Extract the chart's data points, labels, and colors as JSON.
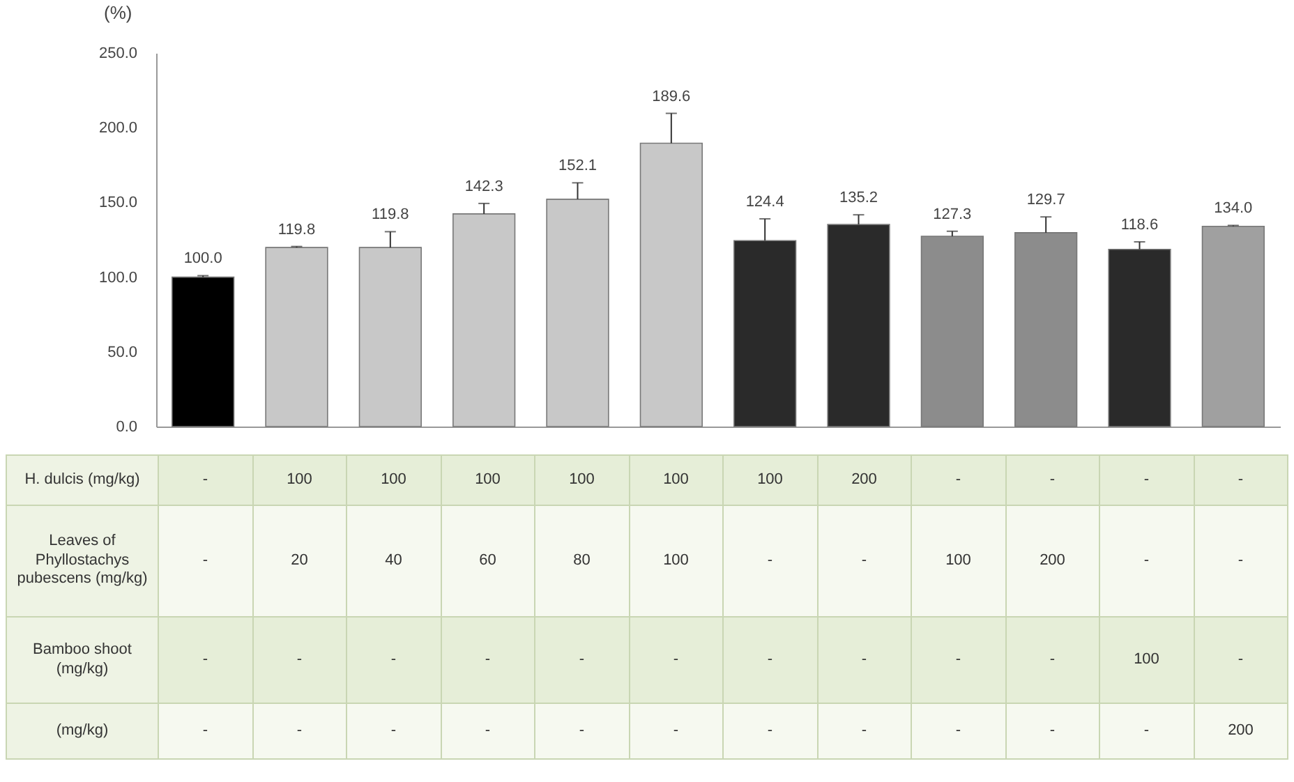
{
  "chart_data": {
    "type": "bar",
    "ylabel": "(%)",
    "categories": [
      null,
      null,
      null,
      null,
      null,
      null,
      null,
      null,
      null,
      null,
      null,
      null
    ],
    "values": [
      100.0,
      119.8,
      119.8,
      142.3,
      152.1,
      189.6,
      124.4,
      135.2,
      127.3,
      129.7,
      118.6,
      134.0
    ],
    "value_labels": [
      "100.0",
      "119.8",
      "119.8",
      "142.3",
      "152.1",
      "189.6",
      "124.4",
      "135.2",
      "127.3",
      "129.7",
      "118.6",
      "134.0"
    ],
    "errors": [
      [
        100,
        101
      ],
      [
        119.8,
        120.5
      ],
      [
        119.8,
        130.4
      ],
      [
        142.3,
        149.3
      ],
      [
        152.1,
        163.1
      ],
      [
        189.6,
        209.6
      ],
      [
        124.4,
        139
      ],
      [
        135.2,
        141.7
      ],
      [
        127.3,
        130.7
      ],
      [
        129.7,
        140.3
      ],
      [
        118.6,
        123.6
      ],
      [
        134,
        134.6
      ]
    ],
    "colors": [
      "#000000",
      "#c8c8c8",
      "#c8c8c8",
      "#c8c8c8",
      "#c8c8c8",
      "#c8c8c8",
      "#2a2a2a",
      "#2a2a2a",
      "#8c8c8c",
      "#8c8c8c",
      "#2a2a2a",
      "#a0a0a0"
    ],
    "ylim": [
      0,
      250
    ],
    "yticks": [
      {
        "value": 0,
        "label": "0.0"
      },
      {
        "value": 50,
        "label": "50.0"
      },
      {
        "value": 100,
        "label": "100.0"
      },
      {
        "value": 150,
        "label": "150.0"
      },
      {
        "value": 200,
        "label": "200.0"
      },
      {
        "value": 250,
        "label": "250.0"
      }
    ],
    "grid": false,
    "annotations": [
      "H. dulcis (mg/kg)",
      "-",
      "100",
      "100",
      "100",
      "100",
      "100",
      "100",
      "200",
      "-",
      "-",
      "-",
      "-",
      "Leaves of Phyllostachys pubescens (mg/kg)",
      "-",
      "20",
      "40",
      "60",
      "80",
      "100",
      "-",
      "-",
      "100",
      "200",
      "-",
      "-",
      "Bamboo shoot (mg/kg)",
      "-",
      "-",
      "-",
      "-",
      "-",
      "-",
      "-",
      "-",
      "-",
      "-",
      "100",
      "-",
      "(mg/kg)",
      "-",
      "-",
      "-",
      "-",
      "-",
      "-",
      "-",
      "-",
      "-",
      "-",
      "-",
      "200"
    ]
  }
}
